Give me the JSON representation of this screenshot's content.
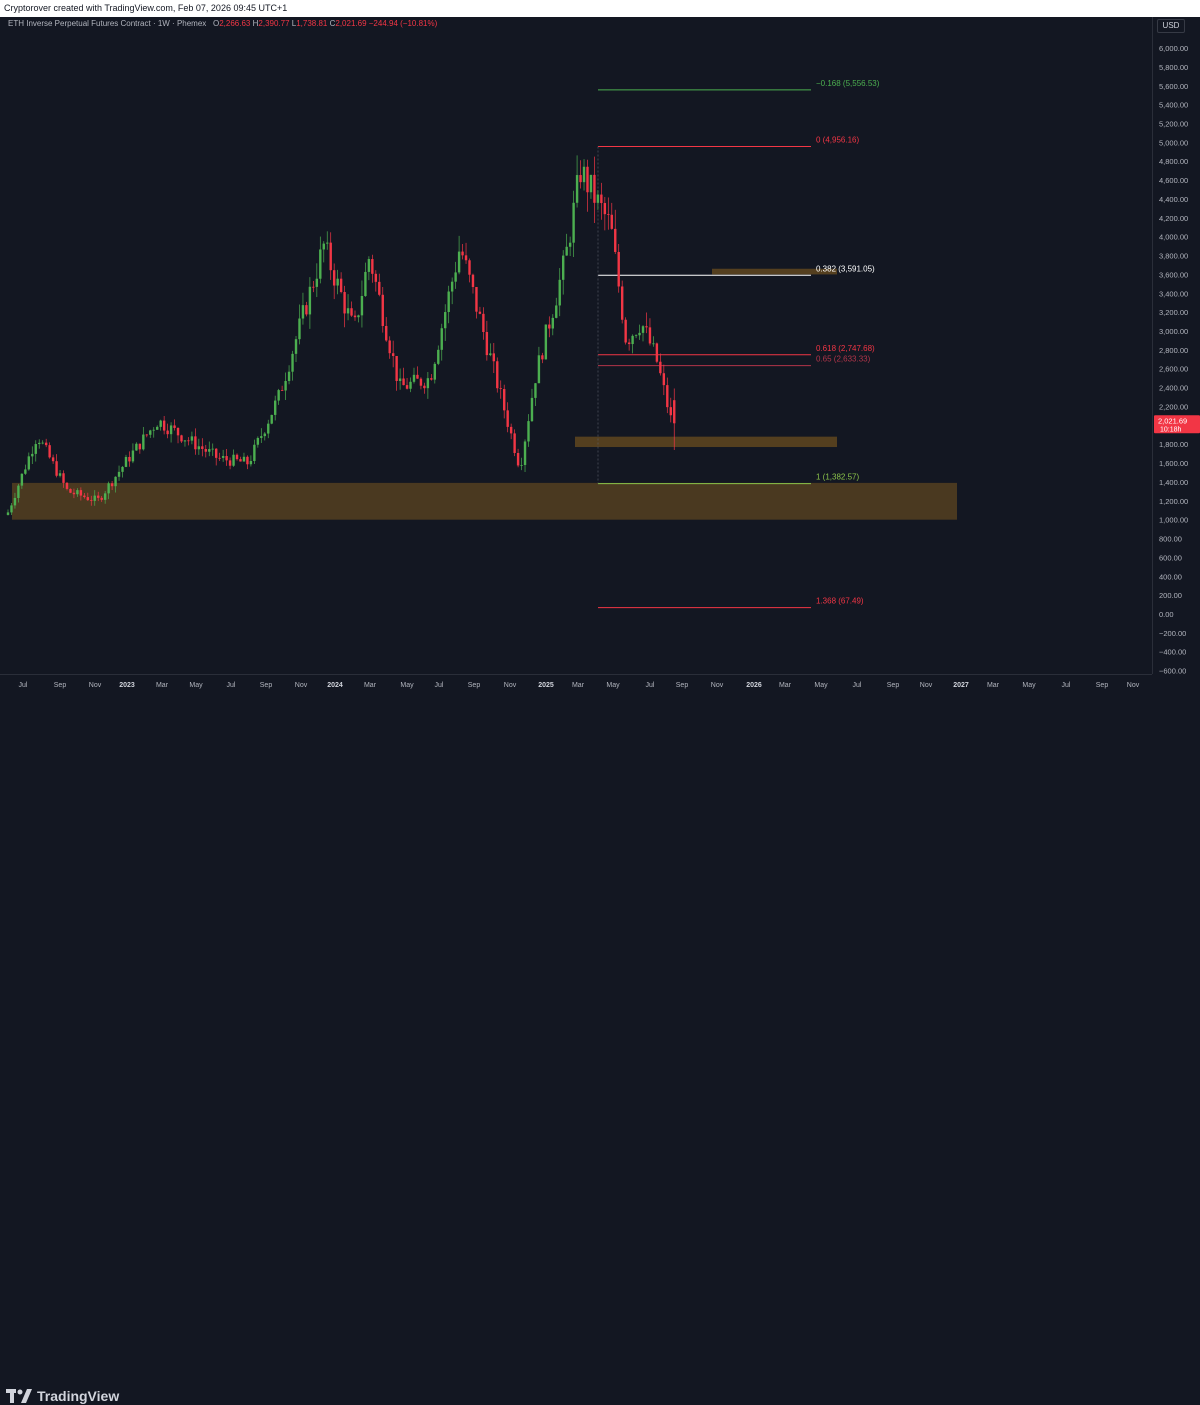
{
  "header": {
    "attribution": "Cryptorover created with TradingView.com, Feb 07, 2026 09:45 UTC+1"
  },
  "legend": {
    "symbol": "ETH Inverse Perpetual Futures Contract · 1W · Phemex",
    "o_key": "O",
    "o_val": "2,266.63",
    "h_key": "H",
    "h_val": "2,390.77",
    "l_key": "L",
    "l_val": "1,738.81",
    "c_key": "C",
    "c_val": "2,021.69",
    "change": "−244.94 (−10.81%)"
  },
  "price_axis": {
    "currency": "USD",
    "last_price": "2,021.69",
    "countdown": "10:18h",
    "tick_labels": [
      "6,000.00",
      "5,800.00",
      "5,600.00",
      "5,400.00",
      "5,200.00",
      "5,000.00",
      "4,800.00",
      "4,600.00",
      "4,400.00",
      "4,200.00",
      "4,000.00",
      "3,800.00",
      "3,600.00",
      "3,400.00",
      "3,200.00",
      "3,000.00",
      "2,800.00",
      "2,600.00",
      "2,400.00",
      "2,200.00",
      "1,800.00",
      "1,600.00",
      "1,400.00",
      "1,200.00",
      "1,000.00",
      "800.00",
      "600.00",
      "400.00",
      "200.00",
      "0.00",
      "−200.00",
      "−400.00",
      "−600.00"
    ]
  },
  "time_axis": {
    "labels": [
      "Jul",
      "Sep",
      "Nov",
      "2023",
      "Mar",
      "May",
      "Jul",
      "Sep",
      "Nov",
      "2024",
      "Mar",
      "May",
      "Jul",
      "Sep",
      "Nov",
      "2025",
      "Mar",
      "May",
      "Jul",
      "Sep",
      "Nov",
      "2026",
      "Mar",
      "May",
      "Jul",
      "Sep",
      "Nov",
      "2027",
      "Mar",
      "May",
      "Jul",
      "Sep",
      "Nov"
    ]
  },
  "fib_levels": [
    {
      "label": "−0.168 (5,556.53)",
      "price": 5556.53,
      "color": "#4caf50"
    },
    {
      "label": "0 (4,956.16)",
      "price": 4956.16,
      "color": "#f23645"
    },
    {
      "label": "0.382 (3,591.05)",
      "price": 3591.05,
      "color": "#ffffff"
    },
    {
      "label": "0.618 (2,747.68)",
      "price": 2747.68,
      "color": "#f23645"
    },
    {
      "label": "0.65 (2,633.33)",
      "price": 2633.33,
      "color": "#b2354a"
    },
    {
      "label": "1 (1,382.57)",
      "price": 1382.57,
      "color": "#8bc34a"
    },
    {
      "label": "1.368 (67.49)",
      "price": 67.49,
      "color": "#f23645"
    }
  ],
  "zones": [
    {
      "name": "lower-support-zone",
      "top": 1390,
      "bottom": 1000,
      "color": "#5d4520"
    },
    {
      "name": "mid-support-zone",
      "top": 1880,
      "bottom": 1770,
      "color": "#6b4d1f"
    },
    {
      "name": "upper-resistance-zone",
      "top": 3660,
      "bottom": 3600,
      "color": "#6b4d1f"
    }
  ],
  "colors": {
    "up": "#4caf50",
    "down": "#f23645",
    "background": "#131722"
  },
  "footer": {
    "brand": "TradingView"
  },
  "chart_data": {
    "type": "candlestick",
    "title": "ETH Inverse Perpetual Futures Contract · 1W · Phemex",
    "ylim": [
      -650,
      6200
    ],
    "interval": "1W",
    "x_range": [
      "2022-06",
      "2027-12"
    ],
    "price_path": [
      {
        "date": "2022-06",
        "close": 1050
      },
      {
        "date": "2022-08",
        "close": 1900
      },
      {
        "date": "2022-10",
        "close": 1300
      },
      {
        "date": "2022-12",
        "close": 1200
      },
      {
        "date": "2023-02",
        "close": 1650
      },
      {
        "date": "2023-04",
        "close": 2050
      },
      {
        "date": "2023-06",
        "close": 1850
      },
      {
        "date": "2023-08",
        "close": 1650
      },
      {
        "date": "2023-10",
        "close": 1600
      },
      {
        "date": "2023-12",
        "close": 2300
      },
      {
        "date": "2024-03",
        "close": 3900
      },
      {
        "date": "2024-05",
        "close": 3000
      },
      {
        "date": "2024-06",
        "close": 3800
      },
      {
        "date": "2024-08",
        "close": 2400
      },
      {
        "date": "2024-10",
        "close": 2500
      },
      {
        "date": "2024-12",
        "close": 3900
      },
      {
        "date": "2025-02",
        "close": 2700
      },
      {
        "date": "2025-04",
        "close": 1550
      },
      {
        "date": "2025-05",
        "close": 2500
      },
      {
        "date": "2025-07",
        "close": 3750
      },
      {
        "date": "2025-08",
        "close": 4700
      },
      {
        "date": "2025-10",
        "close": 4100
      },
      {
        "date": "2025-11",
        "close": 2900
      },
      {
        "date": "2025-12",
        "close": 3100
      },
      {
        "date": "2026-01",
        "close": 2700
      },
      {
        "date": "2026-02",
        "close": 2021.69
      }
    ]
  }
}
